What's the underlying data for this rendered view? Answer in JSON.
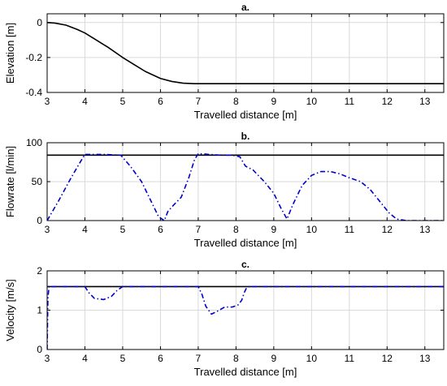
{
  "chart_data": [
    {
      "type": "line",
      "title": "a.",
      "xlabel": "Travelled distance [m]",
      "ylabel": "Elevation [m]",
      "xlim": [
        3,
        13.5
      ],
      "ylim": [
        -0.4,
        0.05
      ],
      "xticks": [
        3,
        4,
        5,
        6,
        7,
        8,
        9,
        10,
        11,
        12,
        13
      ],
      "yticks": [
        0,
        -0.2,
        -0.4
      ],
      "ytick_labels": [
        "0",
        "-0.2",
        "-0.4"
      ],
      "grid": true,
      "series": [
        {
          "color": "#000000",
          "dash": "solid",
          "x": [
            3,
            3.2,
            3.5,
            3.8,
            4,
            4.3,
            4.6,
            5,
            5.3,
            5.6,
            6,
            6.3,
            6.6,
            6.9,
            7.2,
            8,
            9,
            10,
            11,
            12,
            13,
            13.5
          ],
          "y": [
            0,
            -0.003,
            -0.015,
            -0.04,
            -0.06,
            -0.1,
            -0.14,
            -0.2,
            -0.24,
            -0.28,
            -0.32,
            -0.337,
            -0.347,
            -0.35,
            -0.35,
            -0.35,
            -0.35,
            -0.35,
            -0.35,
            -0.35,
            -0.35,
            -0.35
          ]
        }
      ]
    },
    {
      "type": "line",
      "title": "b.",
      "xlabel": "Travelled distance [m]",
      "ylabel": "Flowrate [l/min]",
      "xlim": [
        3,
        13.5
      ],
      "ylim": [
        0,
        100
      ],
      "xticks": [
        3,
        4,
        5,
        6,
        7,
        8,
        9,
        10,
        11,
        12,
        13
      ],
      "yticks": [
        0,
        50,
        100
      ],
      "ytick_labels": [
        "0",
        "50",
        "100"
      ],
      "grid": true,
      "series": [
        {
          "color": "#000000",
          "dash": "solid",
          "x": [
            3,
            13.5
          ],
          "y": [
            84,
            84
          ]
        },
        {
          "color": "#0000cc",
          "dash": "dashdot",
          "x": [
            3,
            3.3,
            3.6,
            3.85,
            4,
            4.5,
            4.95,
            5.2,
            5.5,
            5.75,
            5.95,
            6.1,
            6.2,
            6.35,
            6.55,
            6.75,
            6.9,
            7,
            7.3,
            7.6,
            7.9,
            8.1,
            8.25,
            8.45,
            8.75,
            9,
            9.2,
            9.35,
            9.5,
            9.75,
            10,
            10.25,
            10.5,
            10.75,
            11,
            11.3,
            11.55,
            11.8,
            12.05,
            12.25,
            12.5,
            13,
            13.5
          ],
          "y": [
            0,
            25,
            52,
            73,
            85,
            85,
            84,
            70,
            50,
            25,
            5,
            0,
            12,
            20,
            30,
            55,
            78,
            86,
            85,
            84,
            84,
            82,
            70,
            65,
            50,
            35,
            15,
            2,
            20,
            45,
            58,
            63,
            63,
            60,
            55,
            50,
            40,
            25,
            10,
            2,
            0,
            0,
            0
          ]
        }
      ]
    },
    {
      "type": "line",
      "title": "c.",
      "xlabel": "Travelled distance [m]",
      "ylabel": "Velocity [m/s]",
      "xlim": [
        3,
        13.5
      ],
      "ylim": [
        0,
        2
      ],
      "xticks": [
        3,
        4,
        5,
        6,
        7,
        8,
        9,
        10,
        11,
        12,
        13
      ],
      "yticks": [
        0,
        1,
        2
      ],
      "ytick_labels": [
        "0",
        "1",
        "2"
      ],
      "grid": true,
      "series": [
        {
          "color": "#000000",
          "dash": "solid",
          "x": [
            3,
            13.5
          ],
          "y": [
            1.6,
            1.6
          ]
        },
        {
          "color": "#0000cc",
          "dash": "dashdot",
          "x": [
            3,
            3.02,
            3.05,
            3.1,
            4,
            4.1,
            4.25,
            4.5,
            4.7,
            4.85,
            5,
            7,
            7.1,
            7.2,
            7.35,
            7.5,
            7.7,
            7.9,
            8.05,
            8.15,
            8.22,
            8.28,
            8.35,
            13.5
          ],
          "y": [
            0,
            1.3,
            1.6,
            1.6,
            1.6,
            1.45,
            1.3,
            1.27,
            1.35,
            1.5,
            1.6,
            1.6,
            1.4,
            1.1,
            0.9,
            0.97,
            1.08,
            1.08,
            1.13,
            1.25,
            1.45,
            1.57,
            1.6,
            1.6
          ]
        }
      ]
    }
  ]
}
